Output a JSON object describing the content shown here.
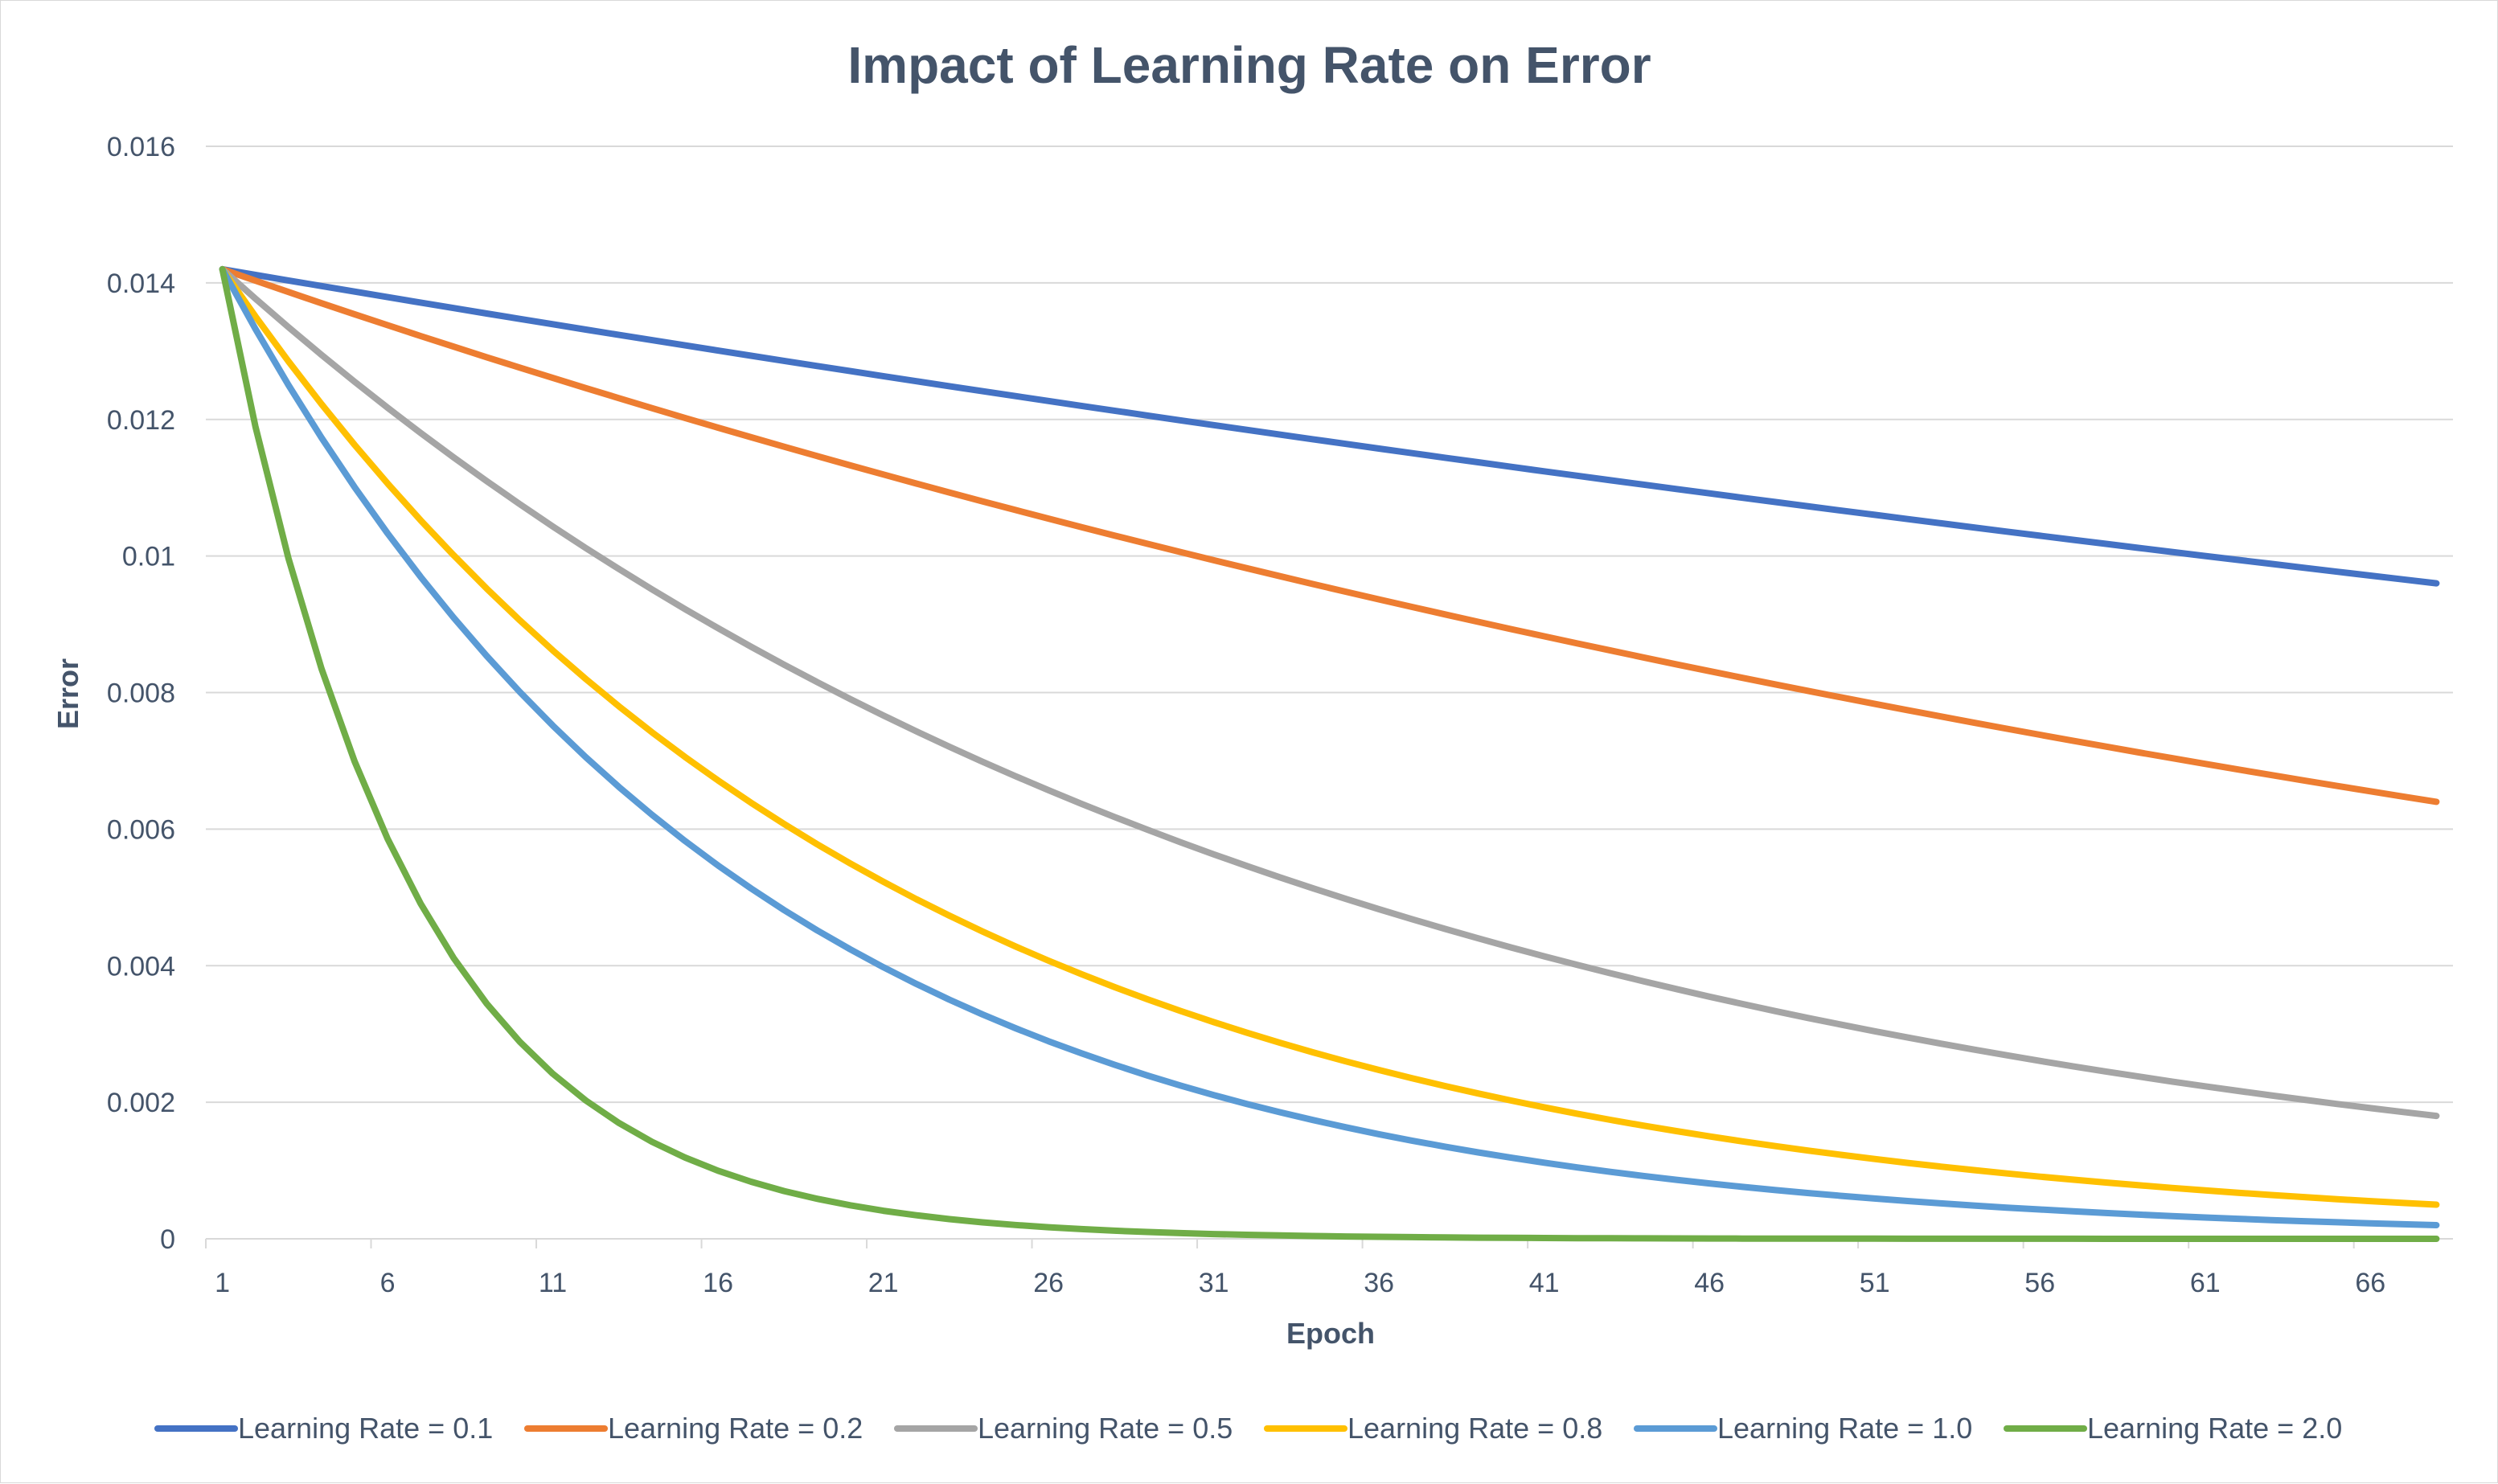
{
  "chart_data": {
    "type": "line",
    "title": "Impact of Learning Rate on Error",
    "xlabel": "Epoch",
    "ylabel": "Error",
    "x_start": 1,
    "x_end": 68,
    "x_tick_values": [
      1,
      6,
      11,
      16,
      21,
      26,
      31,
      36,
      41,
      46,
      51,
      56,
      61,
      66
    ],
    "x_tick_labels": [
      "1",
      "6",
      "11",
      "16",
      "21",
      "26",
      "31",
      "36",
      "41",
      "46",
      "51",
      "56",
      "61",
      "66"
    ],
    "ylim": [
      0,
      0.016
    ],
    "y_tick_values": [
      0,
      0.002,
      0.004,
      0.006,
      0.008,
      0.01,
      0.012,
      0.014,
      0.016
    ],
    "y_tick_labels": [
      "0",
      "0.002",
      "0.004",
      "0.006",
      "0.008",
      "0.01",
      "0.012",
      "0.014",
      "0.016"
    ],
    "grid": true,
    "legend_position": "bottom",
    "initial_error": 0.0142,
    "series": [
      {
        "name": "Learning Rate = 0.1",
        "color": "#4472c4",
        "end_value": 0.0096
      },
      {
        "name": "Learning Rate = 0.2",
        "color": "#ed7d31",
        "end_value": 0.0064
      },
      {
        "name": "Learning Rate = 0.5",
        "color": "#a5a5a5",
        "end_value": 0.0018
      },
      {
        "name": "Learning Rate = 0.8",
        "color": "#ffc000",
        "end_value": 0.0005
      },
      {
        "name": "Learning Rate = 1.0",
        "color": "#5b9bd5",
        "end_value": 0.0002
      },
      {
        "name": "Learning Rate = 2.0",
        "color": "#70ad47",
        "end_value": 0.0
      }
    ]
  }
}
